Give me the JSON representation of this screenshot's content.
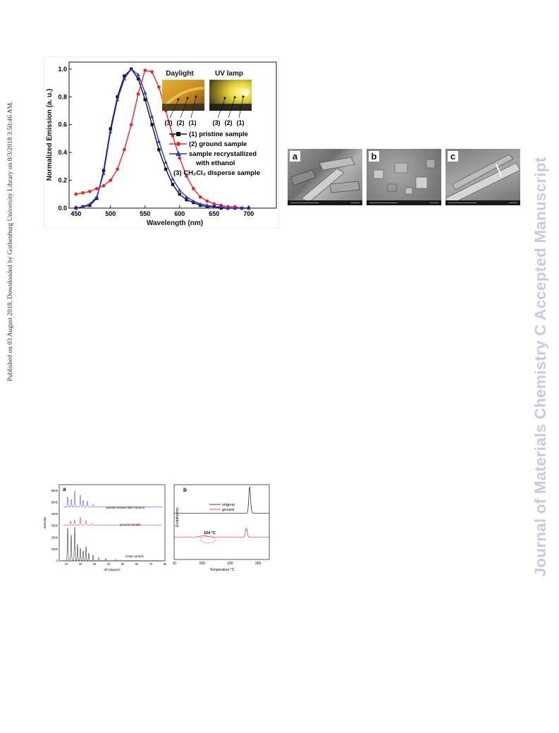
{
  "sidebar_left": {
    "text": "Published on 03 August 2018. Downloaded by Gothenburg University Library on 8/3/2018 3:50:46 AM."
  },
  "sidebar_right": {
    "text": "Journal of Materials Chemistry C Accepted Manuscript"
  },
  "emission_figure": {
    "inset": {
      "daylight": "Daylight",
      "uv": "UV lamp",
      "labels": [
        "(3)",
        "(2)",
        "(1)"
      ]
    },
    "legend": [
      "(1) pristine sample",
      "(2) ground sample",
      "sample  recrystallized",
      "with ethanol",
      "(3) CH₂Cl₂ disperse sample"
    ]
  },
  "sem_figure": {
    "panels": [
      "a",
      "b",
      "c"
    ]
  },
  "xrd_figure": {
    "panel_label": "a",
    "traces": [
      "sample treated with ethanol",
      "ground sample",
      "initial sample"
    ]
  },
  "dsc_figure": {
    "panel_label": "b",
    "legend": [
      "original",
      "ground"
    ],
    "annotation": "104 °C"
  },
  "chart_data": [
    {
      "type": "line",
      "title": "",
      "xlabel": "Wavelength (nm)",
      "ylabel": "Normalized Emission (a. u.)",
      "xlim": [
        440,
        740
      ],
      "ylim": [
        0,
        1.05
      ],
      "xticks": [
        450,
        500,
        550,
        600,
        650,
        700
      ],
      "yticks": [
        0.0,
        0.2,
        0.4,
        0.6,
        0.8,
        1.0
      ],
      "colors": [
        "#111111",
        "#e8262b",
        "#2233cc"
      ],
      "series": [
        {
          "name": "(1) pristine sample",
          "x": [
            450,
            460,
            470,
            480,
            490,
            500,
            510,
            520,
            530,
            540,
            550,
            560,
            570,
            580,
            590,
            600,
            610,
            620,
            630,
            640,
            650,
            660,
            670,
            680,
            690,
            700
          ],
          "y": [
            0.0,
            0.01,
            0.02,
            0.07,
            0.27,
            0.57,
            0.8,
            0.95,
            1.0,
            0.93,
            0.78,
            0.6,
            0.42,
            0.28,
            0.17,
            0.1,
            0.06,
            0.04,
            0.02,
            0.01,
            0.01,
            0.0,
            0.0,
            0.0,
            0.0,
            0.0
          ]
        },
        {
          "name": "(2) ground sample",
          "x": [
            450,
            460,
            470,
            480,
            490,
            500,
            510,
            520,
            530,
            540,
            550,
            560,
            570,
            580,
            590,
            600,
            610,
            620,
            630,
            640,
            650,
            660,
            670,
            680,
            690,
            700
          ],
          "y": [
            0.1,
            0.11,
            0.12,
            0.14,
            0.16,
            0.2,
            0.28,
            0.42,
            0.6,
            0.82,
            0.99,
            0.98,
            0.87,
            0.7,
            0.52,
            0.36,
            0.23,
            0.14,
            0.08,
            0.05,
            0.03,
            0.02,
            0.01,
            0.01,
            0.0,
            0.0
          ]
        },
        {
          "name": "sample recrystallized with ethanol",
          "x": [
            450,
            460,
            470,
            480,
            490,
            500,
            510,
            520,
            530,
            540,
            550,
            560,
            570,
            580,
            590,
            600,
            610,
            620,
            630,
            640,
            650,
            660,
            670,
            680,
            690,
            700
          ],
          "y": [
            0.0,
            0.01,
            0.03,
            0.08,
            0.25,
            0.55,
            0.78,
            0.93,
            1.0,
            0.96,
            0.83,
            0.66,
            0.48,
            0.33,
            0.21,
            0.13,
            0.08,
            0.05,
            0.03,
            0.02,
            0.01,
            0.01,
            0.0,
            0.0,
            0.0,
            0.0
          ]
        }
      ]
    },
    {
      "type": "line",
      "xlabel": "2θ (degree)",
      "ylabel": "Intensity",
      "xlim": [
        5,
        80
      ],
      "ylim": [
        0,
        6500
      ],
      "xticks": [
        10,
        20,
        30,
        40,
        50,
        60,
        70,
        80
      ],
      "yticks": [
        0,
        1000,
        2000,
        3000,
        4000,
        5000,
        6000
      ],
      "colors": [
        "#3a3aee",
        "#e8262b",
        "#111111"
      ],
      "series": [
        {
          "name": "sample treated with ethanol",
          "baseline": 4600,
          "peaks": [
            [
              11,
              900
            ],
            [
              13.5,
              700
            ],
            [
              16,
              1400
            ],
            [
              20,
              1000
            ],
            [
              22,
              600
            ],
            [
              25,
              500
            ],
            [
              29,
              250
            ]
          ]
        },
        {
          "name": "ground sample",
          "baseline": 3050,
          "peaks": [
            [
              13,
              350
            ],
            [
              16,
              500
            ],
            [
              20,
              650
            ],
            [
              24,
              400
            ],
            [
              28,
              200
            ]
          ]
        },
        {
          "name": "initial sample",
          "baseline": 0,
          "peaks": [
            [
              11,
              2800
            ],
            [
              13.5,
              2200
            ],
            [
              16,
              2900
            ],
            [
              18,
              1400
            ],
            [
              20,
              1100
            ],
            [
              22,
              900
            ],
            [
              24,
              1200
            ],
            [
              26,
              700
            ],
            [
              29,
              500
            ],
            [
              33,
              300
            ],
            [
              38,
              200
            ],
            [
              45,
              150
            ]
          ]
        }
      ]
    },
    {
      "type": "line",
      "xlabel": "Temperature °C",
      "ylabel": "Endothermic",
      "xlim": [
        50,
        220
      ],
      "xticks": [
        50,
        100,
        150,
        200
      ],
      "colors": [
        "#111111",
        "#e8262b"
      ],
      "series": [
        {
          "name": "original",
          "baseline": 0.62,
          "peak_x": 185,
          "peak_h": 0.35
        },
        {
          "name": "ground",
          "baseline": 0.3,
          "peak_x": 179,
          "peak_h": 0.12,
          "shoulder_x": 104
        }
      ]
    }
  ]
}
